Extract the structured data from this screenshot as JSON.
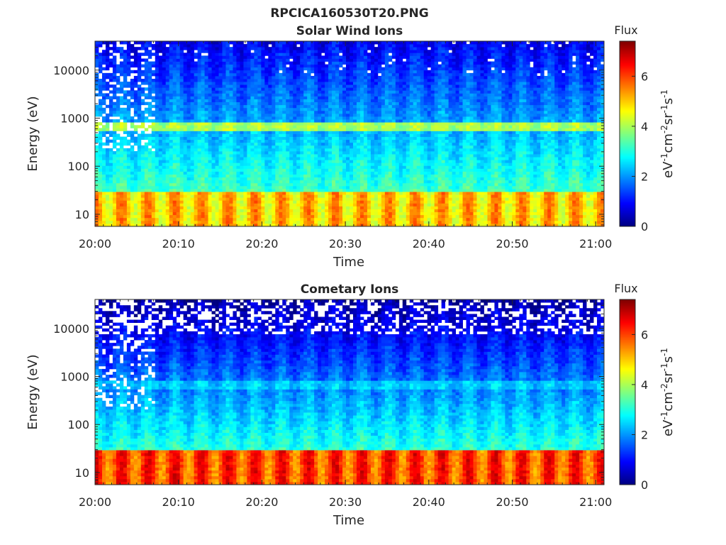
{
  "figure": {
    "title": "RPCICA160530T20.PNG"
  },
  "chart_data": [
    {
      "type": "heatmap",
      "title": "Solar Wind Ions",
      "xlabel": "Time",
      "ylabel": "Energy (eV)",
      "x_range": [
        "20:00",
        "21:01"
      ],
      "x_ticks": [
        "20:00",
        "20:10",
        "20:20",
        "20:30",
        "20:40",
        "20:50",
        "21:00"
      ],
      "y_scale": "log",
      "y_range": [
        5.6,
        40000
      ],
      "y_ticks": [
        10,
        100,
        1000,
        10000
      ],
      "y_tick_labels": [
        "10",
        "100",
        "1000",
        "10000"
      ],
      "colormap": "jet",
      "colorbar": {
        "title": "Flux",
        "label_base": "eV",
        "label_exponent_units": [
          [
            "-1",
            "cm"
          ],
          [
            "-2",
            "sr"
          ],
          [
            "-1",
            "s"
          ],
          [
            "-1",
            ""
          ]
        ],
        "range": [
          0,
          7.4
        ],
        "ticks": [
          0,
          2,
          4,
          6
        ],
        "tick_labels": [
          "0",
          "2",
          "4",
          "6"
        ]
      },
      "grid": false,
      "profile": {
        "low_energy_flux": 5.0,
        "mid_energy_flux": 3.0,
        "high_energy_flux": 1.2,
        "band_energy_eV": 680,
        "band_flux": 4.0,
        "sweep_period_min": 3.2,
        "sparse_until": "20:07"
      }
    },
    {
      "type": "heatmap",
      "title": "Cometary Ions",
      "xlabel": "Time",
      "ylabel": "Energy (eV)",
      "x_range": [
        "20:00",
        "21:01"
      ],
      "x_ticks": [
        "20:00",
        "20:10",
        "20:20",
        "20:30",
        "20:40",
        "20:50",
        "21:00"
      ],
      "y_scale": "log",
      "y_range": [
        5.6,
        40000
      ],
      "y_ticks": [
        10,
        100,
        1000,
        10000
      ],
      "y_tick_labels": [
        "10",
        "100",
        "1000",
        "10000"
      ],
      "colormap": "jet",
      "colorbar": {
        "title": "Flux",
        "label_base": "eV",
        "label_exponent_units": [
          [
            "-1",
            "cm"
          ],
          [
            "-2",
            "sr"
          ],
          [
            "-1",
            "s"
          ],
          [
            "-1",
            ""
          ]
        ],
        "range": [
          0,
          7.4
        ],
        "ticks": [
          0,
          2,
          4,
          6
        ],
        "tick_labels": [
          "0",
          "2",
          "4",
          "6"
        ]
      },
      "grid": false,
      "profile": {
        "low_energy_flux": 6.0,
        "mid_energy_flux": 2.8,
        "high_energy_flux": 0.7,
        "band_energy_eV": 680,
        "band_flux": 2.4,
        "sweep_period_min": 3.2,
        "sparse_until": "20:07"
      }
    }
  ]
}
